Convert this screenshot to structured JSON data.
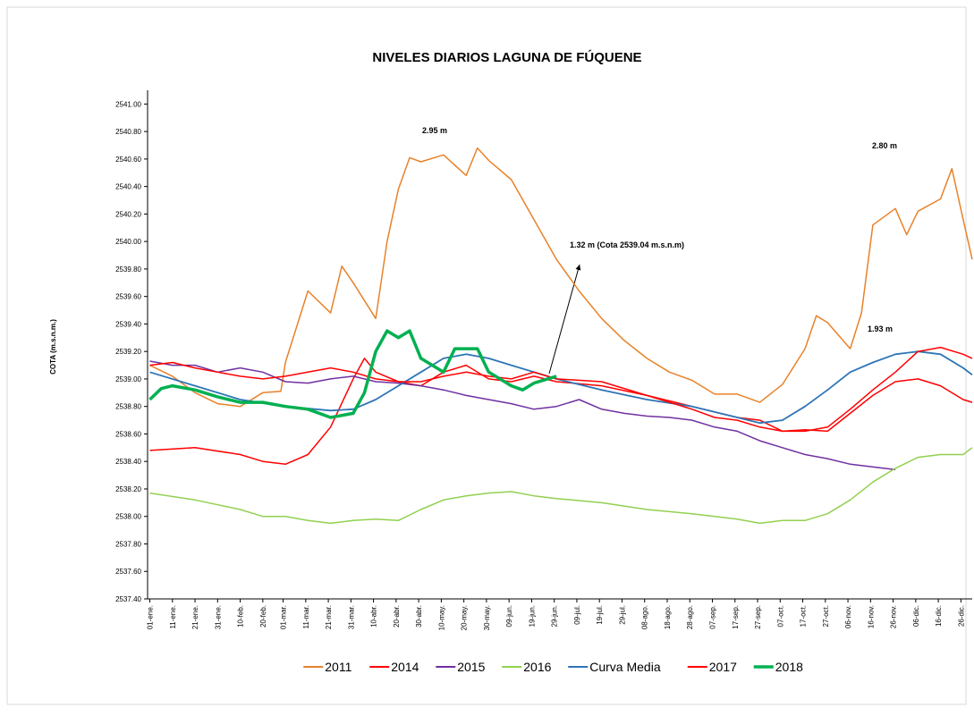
{
  "chart_data": {
    "type": "line",
    "title": "NIVELES DIARIOS LAGUNA DE FÚQUENE",
    "y_label": "COTA (m.s.n.m.)",
    "xlim": [
      -1,
      364
    ],
    "ylim": [
      2537.4,
      2541.1
    ],
    "xticks": [
      {
        "value": 0,
        "label": "01-ene."
      },
      {
        "value": 10,
        "label": "11-ene."
      },
      {
        "value": 20,
        "label": "21-ene."
      },
      {
        "value": 30,
        "label": "31-ene."
      },
      {
        "value": 40,
        "label": "10-feb."
      },
      {
        "value": 50,
        "label": "20-feb."
      },
      {
        "value": 59,
        "label": "01-mar."
      },
      {
        "value": 69,
        "label": "11-mar."
      },
      {
        "value": 79,
        "label": "21-mar."
      },
      {
        "value": 89,
        "label": "31-mar."
      },
      {
        "value": 99,
        "label": "10-abr."
      },
      {
        "value": 109,
        "label": "20-abr."
      },
      {
        "value": 119,
        "label": "30-abr."
      },
      {
        "value": 129,
        "label": "10-may."
      },
      {
        "value": 139,
        "label": "20-may."
      },
      {
        "value": 149,
        "label": "30-may."
      },
      {
        "value": 159,
        "label": "09-jun."
      },
      {
        "value": 169,
        "label": "19-jun."
      },
      {
        "value": 179,
        "label": "29-jun."
      },
      {
        "value": 189,
        "label": "09-jul."
      },
      {
        "value": 199,
        "label": "19-jul."
      },
      {
        "value": 209,
        "label": "29-jul."
      },
      {
        "value": 219,
        "label": "08-ago."
      },
      {
        "value": 229,
        "label": "18-ago."
      },
      {
        "value": 239,
        "label": "28-ago."
      },
      {
        "value": 249,
        "label": "07-sep."
      },
      {
        "value": 259,
        "label": "17-sep."
      },
      {
        "value": 269,
        "label": "27-sep."
      },
      {
        "value": 279,
        "label": "07-oct."
      },
      {
        "value": 289,
        "label": "17-oct."
      },
      {
        "value": 299,
        "label": "27-oct."
      },
      {
        "value": 309,
        "label": "06-nov."
      },
      {
        "value": 319,
        "label": "16-nov."
      },
      {
        "value": 329,
        "label": "26-nov."
      },
      {
        "value": 339,
        "label": "06-dic."
      },
      {
        "value": 349,
        "label": "16-dic."
      },
      {
        "value": 359,
        "label": "26-dic."
      }
    ],
    "yticks": [
      {
        "value": 2537.4,
        "label": "2537.40"
      },
      {
        "value": 2537.6,
        "label": "2537.60"
      },
      {
        "value": 2537.8,
        "label": "2537.80"
      },
      {
        "value": 2538,
        "label": "2538.00"
      },
      {
        "value": 2538.2,
        "label": "2538.20"
      },
      {
        "value": 2538.4,
        "label": "2538.40"
      },
      {
        "value": 2538.6,
        "label": "2538.60"
      },
      {
        "value": 2538.8,
        "label": "2538.80"
      },
      {
        "value": 2539,
        "label": "2539.00"
      },
      {
        "value": 2539.2,
        "label": "2539.20"
      },
      {
        "value": 2539.4,
        "label": "2539.40"
      },
      {
        "value": 2539.6,
        "label": "2539.60"
      },
      {
        "value": 2539.8,
        "label": "2539.80"
      },
      {
        "value": 2540,
        "label": "2540.00"
      },
      {
        "value": 2540.2,
        "label": "2540.20"
      },
      {
        "value": 2540.4,
        "label": "2540.40"
      },
      {
        "value": 2540.6,
        "label": "2540.60"
      },
      {
        "value": 2540.8,
        "label": "2540.80"
      },
      {
        "value": 2541,
        "label": "2541.00"
      }
    ],
    "series": [
      {
        "name": "2011",
        "color": "#e8822a",
        "line_width": 1.5,
        "x": [
          0,
          10,
          20,
          30,
          40,
          50,
          58,
          60,
          70,
          80,
          85,
          90,
          100,
          105,
          110,
          115,
          120,
          130,
          140,
          145,
          150,
          160,
          170,
          180,
          190,
          200,
          210,
          220,
          230,
          240,
          250,
          260,
          270,
          280,
          290,
          295,
          300,
          310,
          315,
          320,
          330,
          335,
          340,
          350,
          355,
          360,
          364
        ],
        "values": [
          2539.1,
          2539.02,
          2538.9,
          2538.82,
          2538.8,
          2538.9,
          2538.91,
          2539.12,
          2539.64,
          2539.48,
          2539.82,
          2539.7,
          2539.44,
          2540.0,
          2540.38,
          2540.61,
          2540.58,
          2540.63,
          2540.48,
          2540.68,
          2540.59,
          2540.45,
          2540.16,
          2539.87,
          2539.64,
          2539.44,
          2539.28,
          2539.15,
          2539.05,
          2538.99,
          2538.89,
          2538.89,
          2538.83,
          2538.96,
          2539.22,
          2539.46,
          2539.41,
          2539.22,
          2539.48,
          2540.12,
          2540.24,
          2540.05,
          2540.22,
          2540.31,
          2540.53,
          2540.16,
          2539.87
        ]
      },
      {
        "name": "2014",
        "color": "#ff0000",
        "line_width": 1.5,
        "x": [
          0,
          20,
          40,
          50,
          60,
          70,
          80,
          90,
          95,
          100,
          110,
          120,
          130,
          140,
          150,
          160,
          170,
          180,
          200,
          220,
          240,
          260,
          270,
          280,
          290,
          300,
          310,
          320,
          330,
          340,
          350,
          360,
          364
        ],
        "values": [
          2538.48,
          2538.5,
          2538.45,
          2538.4,
          2538.38,
          2538.45,
          2538.65,
          2539.0,
          2539.15,
          2539.05,
          2538.98,
          2538.95,
          2539.05,
          2539.1,
          2539.0,
          2538.98,
          2539.02,
          2538.98,
          2538.95,
          2538.88,
          2538.8,
          2538.72,
          2538.7,
          2538.62,
          2538.63,
          2538.62,
          2538.75,
          2538.88,
          2538.98,
          2539.0,
          2538.95,
          2538.85,
          2538.83
        ]
      },
      {
        "name": "2015",
        "color": "#7030a0",
        "line_width": 1.5,
        "x": [
          0,
          10,
          20,
          30,
          40,
          50,
          60,
          70,
          80,
          90,
          100,
          110,
          120,
          130,
          140,
          150,
          160,
          170,
          180,
          190,
          200,
          210,
          220,
          230,
          240,
          250,
          260,
          270,
          280,
          290,
          300,
          310,
          320,
          325,
          330
        ],
        "values": [
          2539.13,
          2539.1,
          2539.1,
          2539.05,
          2539.08,
          2539.05,
          2538.98,
          2538.97,
          2539.0,
          2539.02,
          2538.98,
          2538.97,
          2538.95,
          2538.92,
          2538.88,
          2538.85,
          2538.82,
          2538.78,
          2538.8,
          2538.85,
          2538.78,
          2538.75,
          2538.73,
          2538.72,
          2538.7,
          2538.65,
          2538.62,
          2538.55,
          2538.5,
          2538.45,
          2538.42,
          2538.38,
          2538.36,
          2538.35,
          2538.34
        ]
      },
      {
        "name": "2016",
        "color": "#92d050",
        "line_width": 1.5,
        "x": [
          0,
          20,
          40,
          50,
          60,
          70,
          80,
          90,
          100,
          110,
          120,
          130,
          140,
          150,
          160,
          170,
          180,
          200,
          220,
          240,
          260,
          270,
          280,
          290,
          300,
          310,
          320,
          330,
          340,
          350,
          360,
          364
        ],
        "values": [
          2538.17,
          2538.12,
          2538.05,
          2538.0,
          2538.0,
          2537.97,
          2537.95,
          2537.97,
          2537.98,
          2537.97,
          2538.05,
          2538.12,
          2538.15,
          2538.17,
          2538.18,
          2538.15,
          2538.13,
          2538.1,
          2538.05,
          2538.02,
          2537.98,
          2537.95,
          2537.97,
          2537.97,
          2538.02,
          2538.12,
          2538.25,
          2538.35,
          2538.43,
          2538.45,
          2538.45,
          2538.5
        ]
      },
      {
        "name": "Curva Media",
        "color": "#2e75b6",
        "line_width": 1.8,
        "x": [
          0,
          20,
          40,
          60,
          80,
          90,
          100,
          110,
          120,
          130,
          140,
          150,
          160,
          180,
          200,
          220,
          240,
          260,
          270,
          280,
          290,
          300,
          310,
          320,
          330,
          340,
          350,
          360,
          364
        ],
        "values": [
          2539.05,
          2538.95,
          2538.85,
          2538.8,
          2538.77,
          2538.78,
          2538.85,
          2538.95,
          2539.05,
          2539.15,
          2539.18,
          2539.15,
          2539.1,
          2539.0,
          2538.92,
          2538.85,
          2538.8,
          2538.72,
          2538.68,
          2538.7,
          2538.8,
          2538.92,
          2539.05,
          2539.12,
          2539.18,
          2539.2,
          2539.18,
          2539.08,
          2539.03
        ]
      },
      {
        "name": "2017",
        "color": "#ff0000",
        "line_width": 1.5,
        "x": [
          0,
          10,
          20,
          30,
          40,
          50,
          60,
          70,
          80,
          90,
          100,
          110,
          120,
          130,
          140,
          150,
          160,
          170,
          180,
          200,
          220,
          240,
          250,
          260,
          270,
          280,
          290,
          300,
          310,
          320,
          330,
          340,
          350,
          360,
          364
        ],
        "values": [
          2539.1,
          2539.12,
          2539.08,
          2539.05,
          2539.02,
          2539.0,
          2539.02,
          2539.05,
          2539.08,
          2539.05,
          2539.0,
          2538.98,
          2538.98,
          2539.02,
          2539.05,
          2539.02,
          2539.0,
          2539.05,
          2539.0,
          2538.98,
          2538.88,
          2538.78,
          2538.72,
          2538.7,
          2538.65,
          2538.62,
          2538.62,
          2538.65,
          2538.78,
          2538.92,
          2539.05,
          2539.2,
          2539.23,
          2539.18,
          2539.15
        ]
      },
      {
        "name": "2018",
        "color": "#00b050",
        "line_width": 3.5,
        "x": [
          0,
          5,
          10,
          20,
          30,
          40,
          50,
          60,
          70,
          80,
          90,
          95,
          100,
          105,
          110,
          115,
          120,
          130,
          135,
          145,
          150,
          160,
          165,
          170,
          180
        ],
        "values": [
          2538.85,
          2538.93,
          2538.95,
          2538.92,
          2538.87,
          2538.83,
          2538.83,
          2538.8,
          2538.78,
          2538.72,
          2538.75,
          2538.9,
          2539.2,
          2539.35,
          2539.3,
          2539.35,
          2539.15,
          2539.05,
          2539.22,
          2539.22,
          2539.05,
          2538.95,
          2538.92,
          2538.97,
          2539.02
        ]
      }
    ],
    "annotations": [
      "2.95 m",
      "2.80 m",
      "1.32 m (Cota 2539.04 m.s.n.m)",
      "1.93 m"
    ]
  }
}
